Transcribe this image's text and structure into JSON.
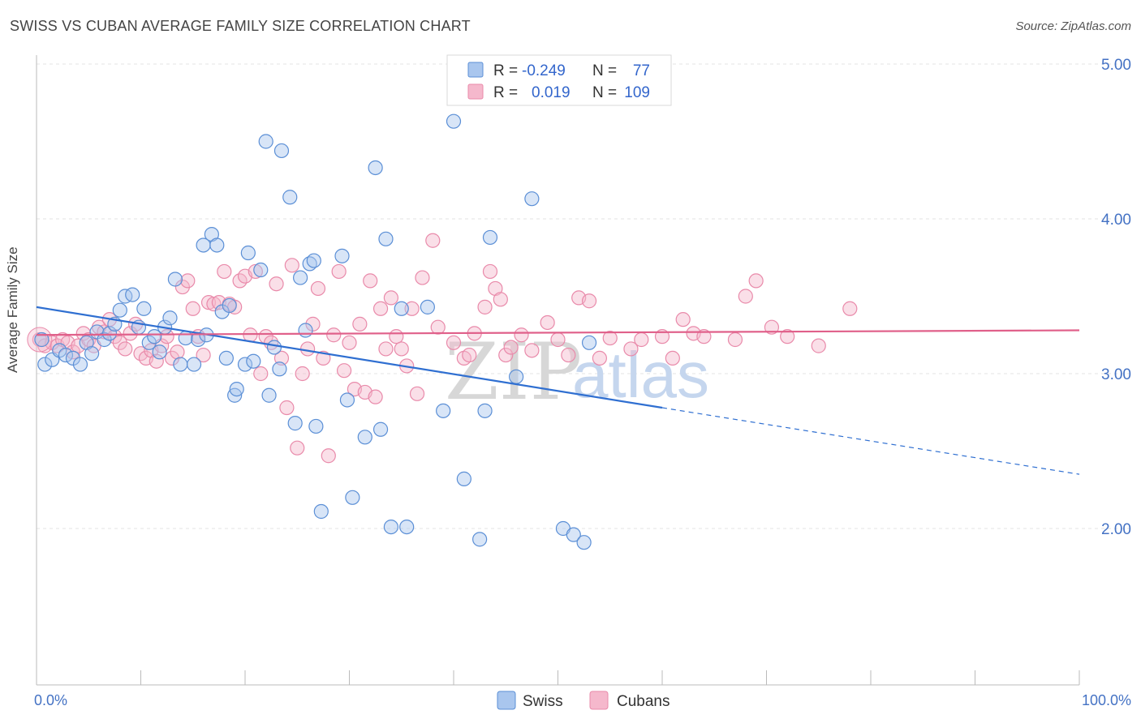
{
  "header": {
    "title": "SWISS VS CUBAN AVERAGE FAMILY SIZE CORRELATION CHART",
    "source": "Source: ZipAtlas.com"
  },
  "watermark": {
    "zip": "ZIP",
    "atlas": "atlas"
  },
  "legend": {
    "r_label": "R =",
    "n_label": "N =",
    "swiss": {
      "r": "-0.249",
      "n": "77"
    },
    "cubans": {
      "r": "0.019",
      "n": "109"
    }
  },
  "colors": {
    "swiss_fill": "#a9c6ee",
    "swiss_stroke": "#5b8fd6",
    "swiss_line": "#2f6fd1",
    "cubans_fill": "#f5b8cc",
    "cubans_stroke": "#e98aaa",
    "cubans_line": "#e0608a"
  },
  "chart_data": {
    "type": "scatter",
    "title": "SWISS VS CUBAN AVERAGE FAMILY SIZE CORRELATION CHART",
    "ylabel": "Average Family Size",
    "xlabel": "",
    "xlim": [
      0,
      100
    ],
    "ylim": [
      1.0,
      5.15
    ],
    "x_tick_labels": [
      "0.0%",
      "100.0%"
    ],
    "y_ticks": [
      2.0,
      3.0,
      4.0,
      5.0
    ],
    "y_tick_labels": [
      "2.00",
      "3.00",
      "4.00",
      "5.00"
    ],
    "grid": true,
    "legend_placement": "top-center",
    "series": [
      {
        "name": "Swiss",
        "trend": {
          "x": [
            0,
            60
          ],
          "y": [
            3.43,
            2.78
          ],
          "dashed_x": [
            60,
            100
          ],
          "dashed_y": [
            2.78,
            2.35
          ]
        },
        "points": [
          [
            0.5,
            3.22
          ],
          [
            0.8,
            3.06
          ],
          [
            1.5,
            3.09
          ],
          [
            2.2,
            3.15
          ],
          [
            2.8,
            3.12
          ],
          [
            3.5,
            3.1
          ],
          [
            4.2,
            3.06
          ],
          [
            4.8,
            3.2
          ],
          [
            5.3,
            3.13
          ],
          [
            5.8,
            3.27
          ],
          [
            6.5,
            3.22
          ],
          [
            7.0,
            3.26
          ],
          [
            7.5,
            3.32
          ],
          [
            8.0,
            3.41
          ],
          [
            8.5,
            3.5
          ],
          [
            9.2,
            3.51
          ],
          [
            9.8,
            3.3
          ],
          [
            10.3,
            3.42
          ],
          [
            10.8,
            3.2
          ],
          [
            11.3,
            3.24
          ],
          [
            11.8,
            3.14
          ],
          [
            12.3,
            3.3
          ],
          [
            12.8,
            3.36
          ],
          [
            13.3,
            3.61
          ],
          [
            13.8,
            3.06
          ],
          [
            14.3,
            3.23
          ],
          [
            15.1,
            3.06
          ],
          [
            15.5,
            3.22
          ],
          [
            16.0,
            3.83
          ],
          [
            16.3,
            3.25
          ],
          [
            16.8,
            3.9
          ],
          [
            17.3,
            3.83
          ],
          [
            17.8,
            3.4
          ],
          [
            18.2,
            3.1
          ],
          [
            18.5,
            3.44
          ],
          [
            19.0,
            2.86
          ],
          [
            19.2,
            2.9
          ],
          [
            20.0,
            3.06
          ],
          [
            20.3,
            3.78
          ],
          [
            20.8,
            3.08
          ],
          [
            21.5,
            3.67
          ],
          [
            22.0,
            4.5
          ],
          [
            22.3,
            2.86
          ],
          [
            22.8,
            3.17
          ],
          [
            23.3,
            3.03
          ],
          [
            23.5,
            4.44
          ],
          [
            24.3,
            4.14
          ],
          [
            24.8,
            2.68
          ],
          [
            25.3,
            3.62
          ],
          [
            25.8,
            3.28
          ],
          [
            26.2,
            3.71
          ],
          [
            26.6,
            3.73
          ],
          [
            26.8,
            2.66
          ],
          [
            27.3,
            2.11
          ],
          [
            29.3,
            3.76
          ],
          [
            29.8,
            2.83
          ],
          [
            30.3,
            2.2
          ],
          [
            31.5,
            2.59
          ],
          [
            32.5,
            4.33
          ],
          [
            33.0,
            2.64
          ],
          [
            33.5,
            3.87
          ],
          [
            34.0,
            2.01
          ],
          [
            35.0,
            3.42
          ],
          [
            35.5,
            2.01
          ],
          [
            37.5,
            3.43
          ],
          [
            39.0,
            2.76
          ],
          [
            40.0,
            4.63
          ],
          [
            41.0,
            2.32
          ],
          [
            42.5,
            1.93
          ],
          [
            43.0,
            2.76
          ],
          [
            43.5,
            3.88
          ],
          [
            46.0,
            2.98
          ],
          [
            47.5,
            4.13
          ],
          [
            50.5,
            2.0
          ],
          [
            51.5,
            1.96
          ],
          [
            52.5,
            1.91
          ],
          [
            53.0,
            3.2
          ]
        ]
      },
      {
        "name": "Cubans",
        "trend": {
          "x": [
            0,
            100
          ],
          "y": [
            3.25,
            3.28
          ]
        },
        "points": [
          [
            0.3,
            3.22
          ],
          [
            0.8,
            3.18
          ],
          [
            1.5,
            3.2
          ],
          [
            2.0,
            3.18
          ],
          [
            2.5,
            3.22
          ],
          [
            3.0,
            3.2
          ],
          [
            3.5,
            3.14
          ],
          [
            4.0,
            3.18
          ],
          [
            4.5,
            3.26
          ],
          [
            5.0,
            3.22
          ],
          [
            5.5,
            3.18
          ],
          [
            6.0,
            3.3
          ],
          [
            6.5,
            3.27
          ],
          [
            7.0,
            3.35
          ],
          [
            7.5,
            3.24
          ],
          [
            8.0,
            3.2
          ],
          [
            8.5,
            3.16
          ],
          [
            9.0,
            3.26
          ],
          [
            9.5,
            3.32
          ],
          [
            10.0,
            3.13
          ],
          [
            10.5,
            3.1
          ],
          [
            11.0,
            3.15
          ],
          [
            11.5,
            3.08
          ],
          [
            12.0,
            3.18
          ],
          [
            12.5,
            3.24
          ],
          [
            13.0,
            3.1
          ],
          [
            13.5,
            3.14
          ],
          [
            14.0,
            3.56
          ],
          [
            14.5,
            3.6
          ],
          [
            15.0,
            3.42
          ],
          [
            15.5,
            3.24
          ],
          [
            16.0,
            3.12
          ],
          [
            16.5,
            3.46
          ],
          [
            17.0,
            3.45
          ],
          [
            17.5,
            3.46
          ],
          [
            18.0,
            3.66
          ],
          [
            18.5,
            3.45
          ],
          [
            19.0,
            3.43
          ],
          [
            19.5,
            3.6
          ],
          [
            20.0,
            3.63
          ],
          [
            20.5,
            3.25
          ],
          [
            21.0,
            3.66
          ],
          [
            21.5,
            3.0
          ],
          [
            22.0,
            3.24
          ],
          [
            22.5,
            3.2
          ],
          [
            23.0,
            3.58
          ],
          [
            23.5,
            3.1
          ],
          [
            24.0,
            2.78
          ],
          [
            24.5,
            3.7
          ],
          [
            25.0,
            2.52
          ],
          [
            25.5,
            3.0
          ],
          [
            26.0,
            3.16
          ],
          [
            26.5,
            3.32
          ],
          [
            27.0,
            3.55
          ],
          [
            27.5,
            3.1
          ],
          [
            28.0,
            2.47
          ],
          [
            28.5,
            3.25
          ],
          [
            29.0,
            3.66
          ],
          [
            29.5,
            3.02
          ],
          [
            30.0,
            3.2
          ],
          [
            30.5,
            2.9
          ],
          [
            31.0,
            3.32
          ],
          [
            31.5,
            2.88
          ],
          [
            32.0,
            3.6
          ],
          [
            32.5,
            2.85
          ],
          [
            33.0,
            3.42
          ],
          [
            33.5,
            3.16
          ],
          [
            34.0,
            3.49
          ],
          [
            34.5,
            3.24
          ],
          [
            35.0,
            3.16
          ],
          [
            35.5,
            3.05
          ],
          [
            36.0,
            3.42
          ],
          [
            36.5,
            2.87
          ],
          [
            37.0,
            3.62
          ],
          [
            38.0,
            3.86
          ],
          [
            38.5,
            3.3
          ],
          [
            40.0,
            3.2
          ],
          [
            41.0,
            3.1
          ],
          [
            41.5,
            3.12
          ],
          [
            42.0,
            3.26
          ],
          [
            43.0,
            3.43
          ],
          [
            43.5,
            3.66
          ],
          [
            44.0,
            3.55
          ],
          [
            44.5,
            3.48
          ],
          [
            45.0,
            3.12
          ],
          [
            45.5,
            3.17
          ],
          [
            46.5,
            3.25
          ],
          [
            47.5,
            3.15
          ],
          [
            49.0,
            3.33
          ],
          [
            50.0,
            3.22
          ],
          [
            51.0,
            3.12
          ],
          [
            52.0,
            3.49
          ],
          [
            53.0,
            3.47
          ],
          [
            54.0,
            3.1
          ],
          [
            55.0,
            3.23
          ],
          [
            57.0,
            3.16
          ],
          [
            58.0,
            3.22
          ],
          [
            60.0,
            3.24
          ],
          [
            61.0,
            3.1
          ],
          [
            62.0,
            3.35
          ],
          [
            63.0,
            3.26
          ],
          [
            64.0,
            3.24
          ],
          [
            67.0,
            3.22
          ],
          [
            68.0,
            3.5
          ],
          [
            69.0,
            3.6
          ],
          [
            70.5,
            3.3
          ],
          [
            72.0,
            3.24
          ],
          [
            75.0,
            3.18
          ],
          [
            78.0,
            3.42
          ]
        ]
      }
    ]
  }
}
